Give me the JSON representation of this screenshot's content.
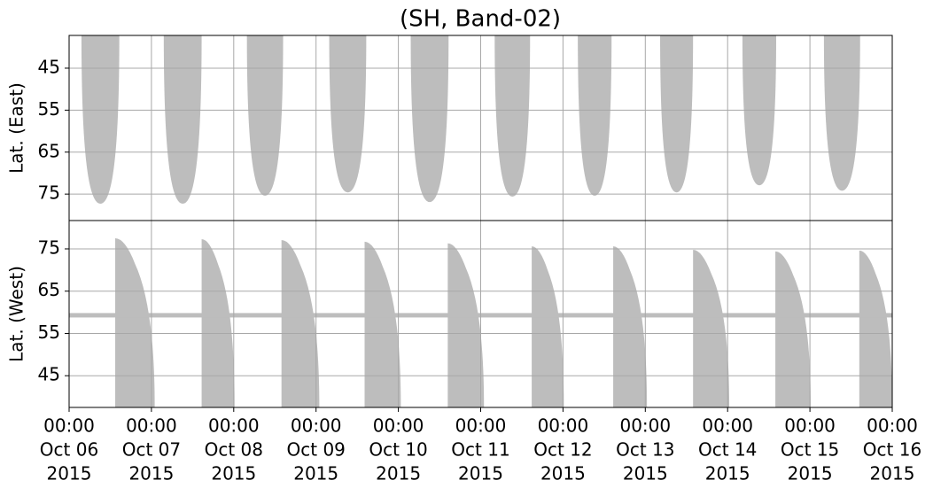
{
  "chart_data": [
    {
      "type": "lobes",
      "title": "(SH, Band-02)",
      "ylabel": "Lat. (East)",
      "ylim": [
        37.2,
        81.3
      ],
      "inverted": true,
      "yticks": [
        45,
        55,
        65,
        75
      ],
      "xlim": [
        0,
        10
      ],
      "grid": true,
      "color": "#bdbdbd",
      "lobes": [
        {
          "start": 0.15,
          "end": 0.61,
          "lat": 77.3
        },
        {
          "start": 1.15,
          "end": 1.61,
          "lat": 77.3
        },
        {
          "start": 2.16,
          "end": 2.6,
          "lat": 75.4
        },
        {
          "start": 3.16,
          "end": 3.61,
          "lat": 74.6
        },
        {
          "start": 4.15,
          "end": 4.61,
          "lat": 76.9
        },
        {
          "start": 5.17,
          "end": 5.6,
          "lat": 75.6
        },
        {
          "start": 6.18,
          "end": 6.59,
          "lat": 75.4
        },
        {
          "start": 7.18,
          "end": 7.58,
          "lat": 74.6
        },
        {
          "start": 8.18,
          "end": 8.59,
          "lat": 72.9
        },
        {
          "start": 9.17,
          "end": 9.61,
          "lat": 74.2
        }
      ]
    },
    {
      "type": "lobes",
      "ylabel": "Lat. (West)",
      "ylim": [
        37.5,
        81.7
      ],
      "inverted": false,
      "yticks": [
        45,
        55,
        65,
        75
      ],
      "xlim": [
        0,
        10
      ],
      "grid": true,
      "color": "#bdbdbd",
      "band": 59.3,
      "xticks": [
        {
          "value": 0,
          "label": [
            "00:00",
            "Oct 06",
            "2015"
          ]
        },
        {
          "value": 1,
          "label": [
            "00:00",
            "Oct 07",
            "2015"
          ]
        },
        {
          "value": 2,
          "label": [
            "00:00",
            "Oct 08",
            "2015"
          ]
        },
        {
          "value": 3,
          "label": [
            "00:00",
            "Oct 09",
            "2015"
          ]
        },
        {
          "value": 4,
          "label": [
            "00:00",
            "Oct 10",
            "2015"
          ]
        },
        {
          "value": 5,
          "label": [
            "00:00",
            "Oct 11",
            "2015"
          ]
        },
        {
          "value": 6,
          "label": [
            "00:00",
            "Oct 12",
            "2015"
          ]
        },
        {
          "value": 7,
          "label": [
            "00:00",
            "Oct 13",
            "2015"
          ]
        },
        {
          "value": 8,
          "label": [
            "00:00",
            "Oct 14",
            "2015"
          ]
        },
        {
          "value": 9,
          "label": [
            "00:00",
            "Oct 15",
            "2015"
          ]
        },
        {
          "value": 10,
          "label": [
            "00:00",
            "Oct 16",
            "2015"
          ]
        }
      ],
      "lobes": [
        {
          "start": 0.56,
          "end": 1.04,
          "lat": 77.5
        },
        {
          "start": 1.61,
          "end": 2.01,
          "lat": 77.3
        },
        {
          "start": 2.58,
          "end": 3.04,
          "lat": 77.1
        },
        {
          "start": 3.59,
          "end": 4.03,
          "lat": 76.7
        },
        {
          "start": 4.6,
          "end": 5.04,
          "lat": 76.3
        },
        {
          "start": 5.62,
          "end": 6.01,
          "lat": 75.6
        },
        {
          "start": 6.61,
          "end": 7.02,
          "lat": 75.6
        },
        {
          "start": 7.58,
          "end": 8.02,
          "lat": 74.8
        },
        {
          "start": 8.58,
          "end": 9.01,
          "lat": 74.4
        },
        {
          "start": 9.6,
          "end": 10,
          "lat": 74.6
        }
      ]
    }
  ]
}
